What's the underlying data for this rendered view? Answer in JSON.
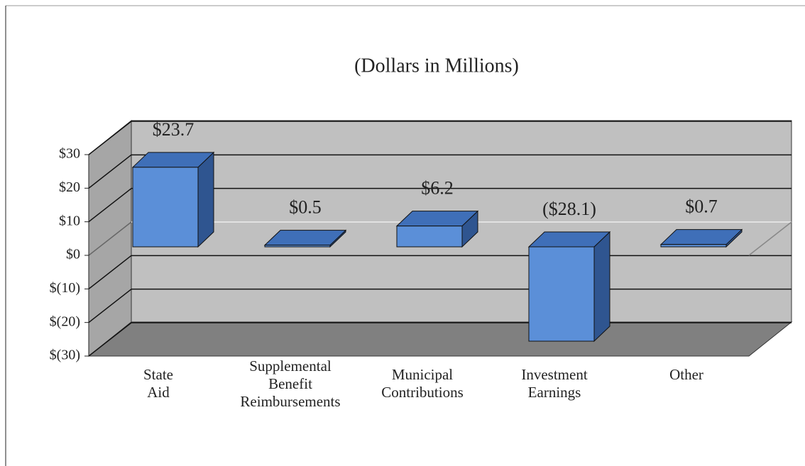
{
  "chart_data": {
    "type": "bar3d",
    "title": "(Dollars in Millions)",
    "categories": [
      "State Aid",
      "Supplemental Benefit Reimbursements",
      "Municipal Contributions",
      "Investment Earnings",
      "Other"
    ],
    "values": [
      23.7,
      0.5,
      6.2,
      -28.1,
      0.7
    ],
    "value_labels": [
      "$23.7",
      "$0.5",
      "$6.2",
      "($28.1)",
      "$0.7"
    ],
    "color": "#5b8fd8",
    "ylim": [
      -30,
      30
    ],
    "yticks": [
      {
        "value": -30,
        "label": "$(30)"
      },
      {
        "value": -20,
        "label": "$(20)"
      },
      {
        "value": -10,
        "label": "$(10)"
      },
      {
        "value": 0,
        "label": "$0"
      },
      {
        "value": 10,
        "label": "$10"
      },
      {
        "value": 20,
        "label": "$20"
      },
      {
        "value": 30,
        "label": "$30"
      }
    ],
    "grid": true
  }
}
